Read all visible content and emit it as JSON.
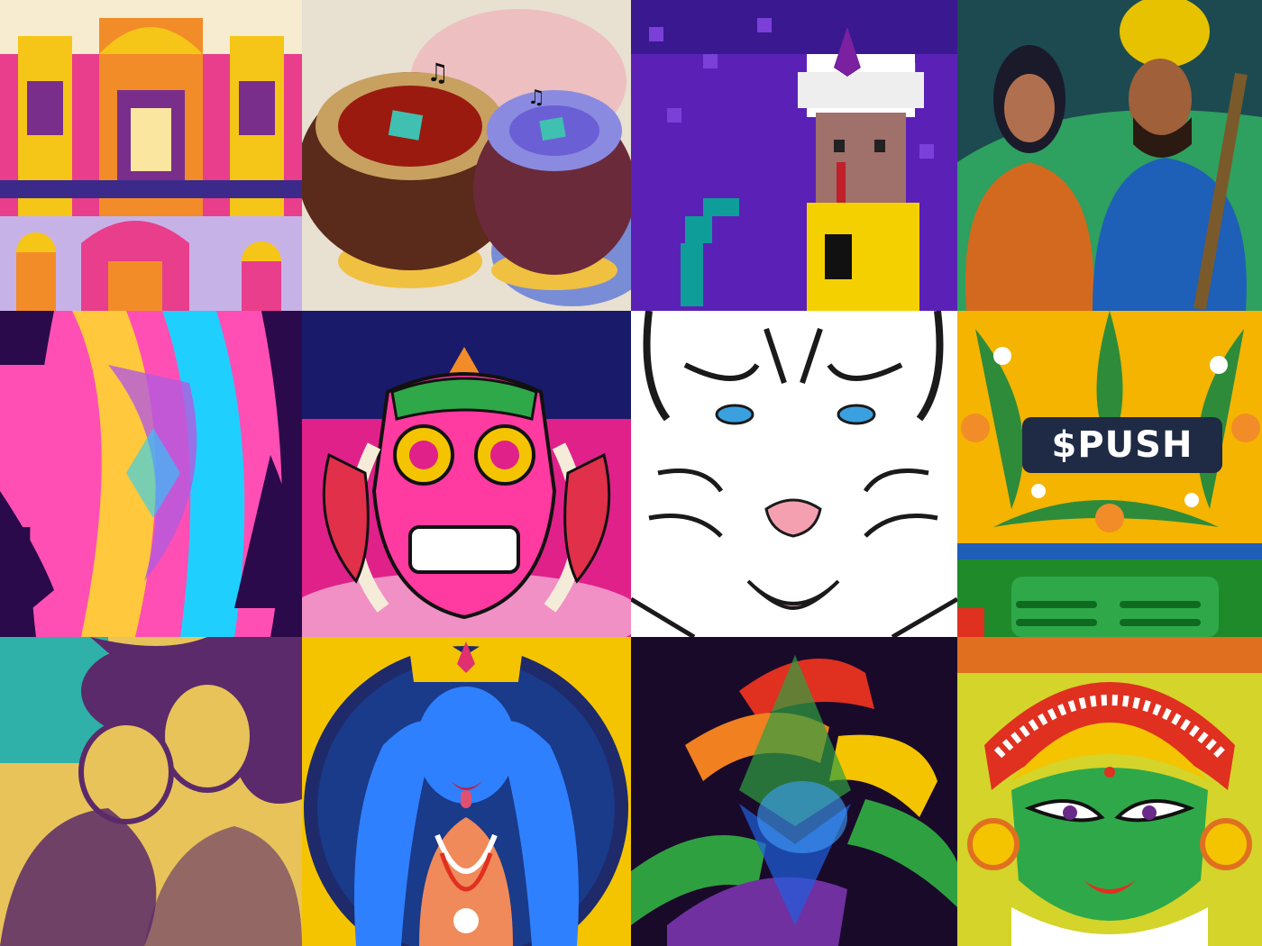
{
  "layout": {
    "rows": 3,
    "columns": 4
  },
  "tiles": [
    {
      "name": "tile-palace",
      "palette": [
        "#f5c518",
        "#e83e8c",
        "#7a2e8c",
        "#f28c28"
      ]
    },
    {
      "name": "tile-tabla",
      "palette": [
        "#5a2a1a",
        "#c8481a",
        "#6b5fd6",
        "#f0c040"
      ]
    },
    {
      "name": "tile-pixel-snake-charmer",
      "palette": [
        "#5b21b6",
        "#ffffff",
        "#f5d000",
        "#0f9d9a"
      ]
    },
    {
      "name": "tile-couple-painting",
      "palette": [
        "#2c7a4b",
        "#d2691e",
        "#1e5fb8",
        "#e6c200"
      ]
    },
    {
      "name": "tile-abstract-jacket",
      "palette": [
        "#2a0a4a",
        "#ff4fb4",
        "#1fd0ff",
        "#ffc83d"
      ]
    },
    {
      "name": "tile-barong-mask",
      "palette": [
        "#e0218a",
        "#1a1a6b",
        "#ffffff",
        "#f4c400"
      ]
    },
    {
      "name": "tile-white-tiger",
      "palette": [
        "#ffffff",
        "#1a1a1a",
        "#3aa0e0",
        "#f4a0b0"
      ]
    },
    {
      "name": "tile-push-floral",
      "palette": [
        "#f4b400",
        "#2e8b3a",
        "#1f2a44",
        "#ffffff"
      ],
      "badge_text": "$PUSH"
    },
    {
      "name": "tile-retro-couple",
      "palette": [
        "#e8c35a",
        "#5a2a6a",
        "#2fb0a8"
      ]
    },
    {
      "name": "tile-kali",
      "palette": [
        "#1e3a8a",
        "#2f80ff",
        "#f08a5a",
        "#f4c400"
      ]
    },
    {
      "name": "tile-rainbow-hands",
      "palette": [
        "#1a0a2a",
        "#e03020",
        "#f08020",
        "#2fa040",
        "#2060e0",
        "#7030a0"
      ]
    },
    {
      "name": "tile-kathakali",
      "palette": [
        "#d4d42a",
        "#2fa84a",
        "#e03020",
        "#f4c400"
      ]
    }
  ]
}
